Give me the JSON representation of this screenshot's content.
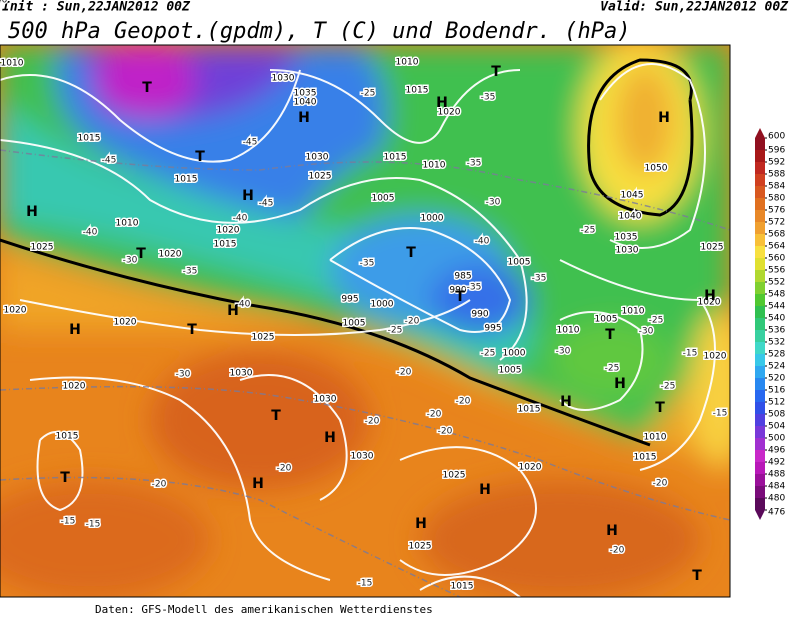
{
  "header": {
    "init": "Init : Sun,22JAN2012 00Z",
    "valid": "Valid: Sun,22JAN2012 00Z",
    "title": "500 hPa Geopot.(gpdm), T (C) und Bodendr. (hPa)"
  },
  "map": {
    "pressure_labels": [
      "1010",
      "1030",
      "1035",
      "1040",
      "1010",
      "1015",
      "1020",
      "1015",
      "1015",
      "1030",
      "1025",
      "1015",
      "1010",
      "1005",
      "1000",
      "1010",
      "1020",
      "1015",
      "1025",
      "1020",
      "985",
      "990",
      "990",
      "995",
      "1000",
      "1005",
      "1020",
      "1020",
      "1025",
      "995",
      "1000",
      "1005",
      "1005",
      "1010",
      "1005",
      "1010",
      "1020",
      "1020",
      "1025",
      "1030",
      "1035",
      "1040",
      "1045",
      "1050",
      "1030",
      "1030",
      "1020",
      "1015",
      "1030",
      "1015",
      "1010",
      "1015",
      "1020",
      "1025",
      "1025",
      "1015"
    ],
    "temperature_labels": [
      "-45",
      "-45",
      "-40",
      "-30",
      "-35",
      "-40",
      "-45",
      "-35",
      "-35",
      "-30",
      "-40",
      "-35",
      "-35",
      "-40",
      "-25",
      "-20",
      "-25",
      "-30",
      "-25",
      "-30",
      "-25",
      "-15",
      "-25",
      "-25",
      "-30",
      "-20",
      "-20",
      "-20",
      "-20",
      "-20",
      "-20",
      "-20",
      "-15",
      "-15",
      "-15",
      "-20",
      "-20",
      "-15",
      "-25",
      "-35",
      "-40"
    ],
    "centers": [
      "T",
      "H",
      "H",
      "T",
      "H",
      "T",
      "H",
      "H",
      "T",
      "T",
      "T",
      "H",
      "T",
      "H",
      "T",
      "H",
      "T",
      "T",
      "H",
      "T",
      "H",
      "H",
      "H",
      "H",
      "T",
      "H",
      "H"
    ]
  },
  "legend": {
    "levels": [
      476,
      480,
      484,
      488,
      492,
      496,
      500,
      504,
      508,
      512,
      516,
      520,
      524,
      528,
      532,
      536,
      540,
      544,
      548,
      552,
      556,
      560,
      564,
      568,
      572,
      576,
      580,
      584,
      588,
      592,
      596,
      600
    ],
    "colors": [
      "#5a0a5a",
      "#7a0c7a",
      "#9a109a",
      "#b818b8",
      "#c828c8",
      "#a030d0",
      "#7838d8",
      "#5040e0",
      "#3050e8",
      "#2868f0",
      "#2888f0",
      "#30a8f0",
      "#38c8e8",
      "#40d8c8",
      "#38d0a0",
      "#30c878",
      "#30c050",
      "#50c830",
      "#80d030",
      "#b0d830",
      "#e0e030",
      "#f8e040",
      "#f8c038",
      "#f0a030",
      "#e88828",
      "#e07020",
      "#d85820",
      "#d04020",
      "#c02820",
      "#a81818",
      "#901020"
    ]
  },
  "footer": "Daten: GFS-Modell des amerikanischen Wetterdienstes"
}
